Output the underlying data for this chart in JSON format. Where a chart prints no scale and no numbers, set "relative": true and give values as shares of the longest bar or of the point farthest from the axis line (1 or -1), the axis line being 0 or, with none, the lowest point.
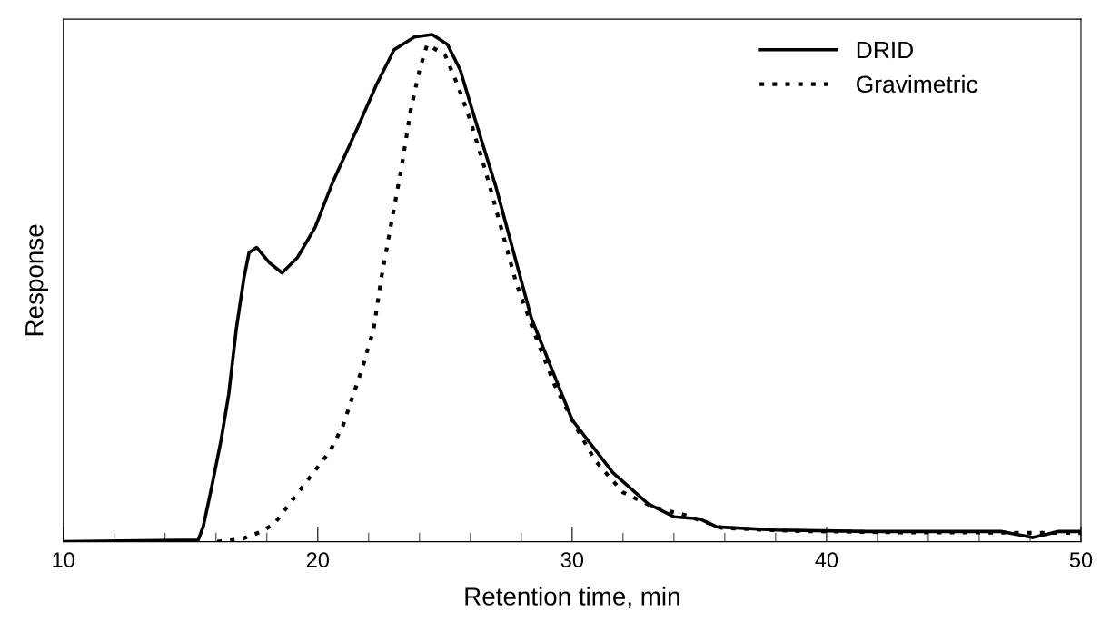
{
  "chart_data": {
    "type": "line",
    "relative": true,
    "xlabel": "Retention time, min",
    "ylabel": "Response",
    "xlim": [
      10,
      50
    ],
    "xticks": [
      10,
      {
        "value": 12,
        "label": null
      },
      {
        "value": 14,
        "label": null
      },
      {
        "value": 16,
        "label": null
      },
      {
        "value": 18,
        "label": null
      },
      20,
      {
        "value": 22,
        "label": null
      },
      {
        "value": 24,
        "label": null
      },
      {
        "value": 26,
        "label": null
      },
      {
        "value": 28,
        "label": null
      },
      30,
      {
        "value": 32,
        "label": null
      },
      {
        "value": 34,
        "label": null
      },
      {
        "value": 36,
        "label": null
      },
      {
        "value": 38,
        "label": null
      },
      40,
      {
        "value": 42,
        "label": null
      },
      {
        "value": 44,
        "label": null
      },
      {
        "value": 46,
        "label": null
      },
      {
        "value": 48,
        "label": null
      },
      50
    ],
    "legend": "top right",
    "grid": false,
    "series": [
      {
        "name": "DRID",
        "color": "#000000",
        "line_style": "solid",
        "x": [
          10,
          15.3,
          15.5,
          15.8,
          16.2,
          16.5,
          16.8,
          17.1,
          17.3,
          17.6,
          18.1,
          18.6,
          19.2,
          19.9,
          20.6,
          21.6,
          22.3,
          23.0,
          23.8,
          24.5,
          25.1,
          25.6,
          26.2,
          27.0,
          27.7,
          28.4,
          29.2,
          30.0,
          31.6,
          33.0,
          34.0,
          35.0,
          35.7,
          38.0,
          41.6,
          45.9,
          46.9,
          48.1,
          49.1,
          50
        ],
        "values": [
          0,
          0.003,
          0.03,
          0.1,
          0.2,
          0.29,
          0.42,
          0.52,
          0.57,
          0.58,
          0.55,
          0.53,
          0.56,
          0.62,
          0.71,
          0.82,
          0.9,
          0.97,
          0.995,
          1,
          0.98,
          0.93,
          0.83,
          0.7,
          0.57,
          0.44,
          0.34,
          0.24,
          0.136,
          0.074,
          0.049,
          0.045,
          0.029,
          0.023,
          0.02,
          0.02,
          0.02,
          0.008,
          0.02,
          0.02
        ]
      },
      {
        "name": "Gravimetric",
        "color": "#000000",
        "line_style": "dotted",
        "x": [
          16.05,
          17.0,
          17.8,
          18.3,
          19.2,
          19.85,
          20.5,
          21.0,
          21.4,
          21.8,
          22.2,
          22.5,
          22.9,
          23.3,
          23.65,
          24.0,
          24.3,
          25.0,
          25.5,
          26.0,
          26.6,
          27.2,
          27.8,
          28.6,
          29.3,
          30.1,
          30.9,
          32.0,
          33.2,
          34.4,
          35.9,
          38.75,
          43.1,
          45.9,
          50
        ],
        "values": [
          0,
          0.005,
          0.02,
          0.036,
          0.095,
          0.137,
          0.18,
          0.23,
          0.29,
          0.35,
          0.42,
          0.52,
          0.63,
          0.74,
          0.85,
          0.93,
          0.98,
          0.96,
          0.9,
          0.83,
          0.73,
          0.62,
          0.51,
          0.4,
          0.31,
          0.23,
          0.16,
          0.097,
          0.068,
          0.053,
          0.027,
          0.021,
          0.018,
          0.018,
          0.017
        ]
      }
    ]
  }
}
